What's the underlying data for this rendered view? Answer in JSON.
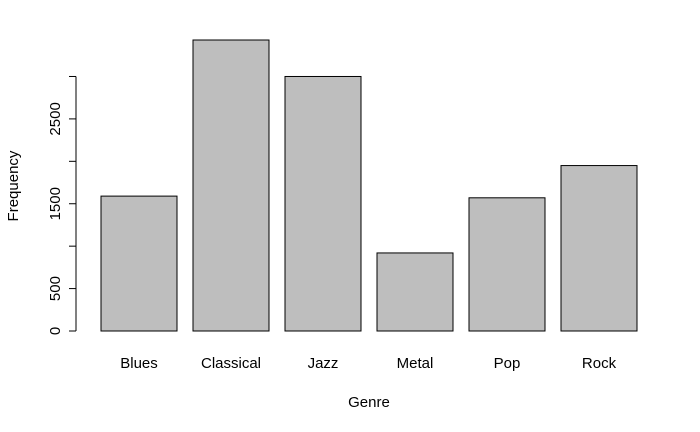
{
  "chart_data": {
    "type": "bar",
    "xlabel": "Genre",
    "ylabel": "Frequency",
    "categories": [
      "Blues",
      "Classical",
      "Jazz",
      "Metal",
      "Pop",
      "Rock"
    ],
    "values": [
      1590,
      3430,
      3000,
      920,
      1570,
      1950
    ],
    "color": "#bebebe",
    "ylim": [
      0,
      3430
    ],
    "yticks": [
      0,
      500,
      {
        "value": 1000,
        "label": null
      },
      1500,
      {
        "value": 2000,
        "label": null
      },
      2500,
      {
        "value": 3000,
        "label": null
      }
    ]
  }
}
